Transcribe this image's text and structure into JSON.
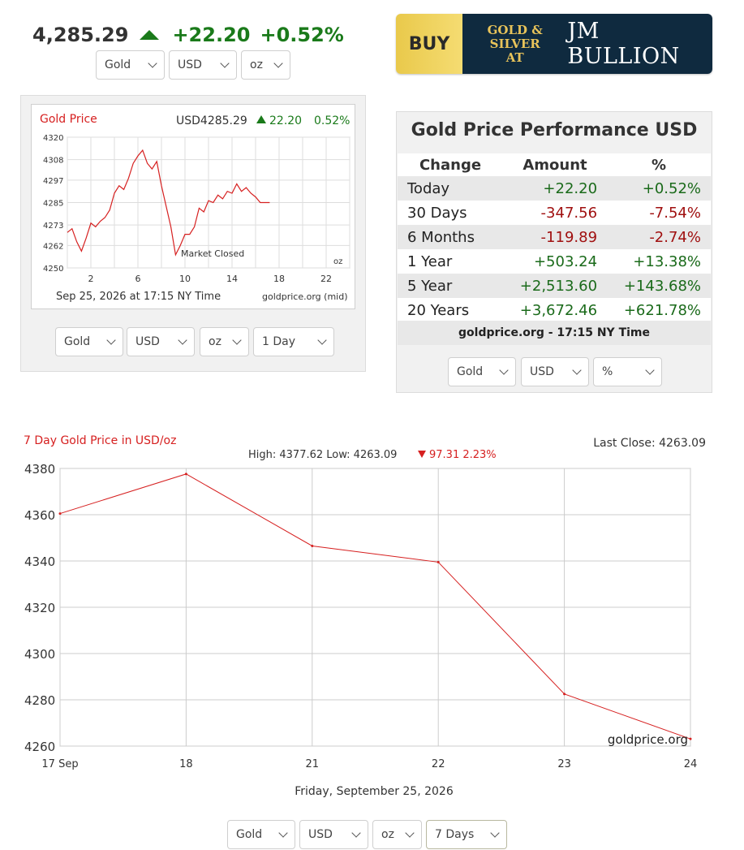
{
  "ticker": {
    "price": "4,285.29",
    "change": "+22.20",
    "percent": "+0.52%"
  },
  "top_selectors": {
    "metal": "Gold",
    "currency": "USD",
    "unit": "oz"
  },
  "banner": {
    "buy": "BUY",
    "line1": "Gold &",
    "line2": "Silver At",
    "brand": "JM Bullion"
  },
  "small_chart_selectors": {
    "metal": "Gold",
    "currency": "USD",
    "unit": "oz",
    "range": "1 Day"
  },
  "perf_selectors": {
    "metal": "Gold",
    "currency": "USD",
    "mode": "%"
  },
  "big_chart_selectors": {
    "metal": "Gold",
    "currency": "USD",
    "unit": "oz",
    "range": "7 Days"
  },
  "performance": {
    "title": "Gold Price Performance USD",
    "headers": [
      "Change",
      "Amount",
      "%"
    ],
    "rows": [
      {
        "label": "Today",
        "amount": "+22.20",
        "pct": "+0.52%",
        "dir": "pos"
      },
      {
        "label": "30 Days",
        "amount": "-347.56",
        "pct": "-7.54%",
        "dir": "neg"
      },
      {
        "label": "6 Months",
        "amount": "-119.89",
        "pct": "-2.74%",
        "dir": "neg"
      },
      {
        "label": "1 Year",
        "amount": "+503.24",
        "pct": "+13.38%",
        "dir": "pos"
      },
      {
        "label": "5 Year",
        "amount": "+2,513.60",
        "pct": "+143.68%",
        "dir": "pos"
      },
      {
        "label": "20 Years",
        "amount": "+3,672.46",
        "pct": "+621.78%",
        "dir": "pos"
      }
    ],
    "source": "goldprice.org - 17:15 NY Time"
  },
  "colors": {
    "up": "#1a7a1a",
    "down": "#a01010",
    "line": "#d62020",
    "grid": "#cccccc"
  },
  "chart_data": [
    {
      "type": "line",
      "title": "Gold Price",
      "header_price": "USD4285.29",
      "header_change": "22.20",
      "header_pct": "0.52%",
      "annotation": "Market Closed",
      "date_label": "Sep 25, 2026 at 17:15 NY Time",
      "source": "goldprice.org (mid)",
      "unit_label": "oz",
      "xlabel": "",
      "ylabel": "",
      "x_ticks": [
        2,
        6,
        10,
        14,
        18,
        22
      ],
      "y_ticks": [
        4250,
        4262,
        4273,
        4285,
        4297,
        4308,
        4320
      ],
      "xlim": [
        0,
        24
      ],
      "ylim": [
        4250,
        4320
      ],
      "grid": true,
      "x": [
        0,
        0.4,
        0.8,
        1.2,
        1.6,
        2.0,
        2.4,
        2.8,
        3.2,
        3.6,
        4.0,
        4.4,
        4.8,
        5.2,
        5.6,
        6.0,
        6.4,
        6.8,
        7.2,
        7.6,
        8.0,
        8.4,
        8.8,
        9.2,
        9.6,
        10.0,
        10.4,
        10.8,
        11.2,
        11.6,
        12.0,
        12.4,
        12.8,
        13.2,
        13.6,
        14.0,
        14.4,
        14.8,
        15.2,
        15.6,
        16.0,
        16.4,
        16.8,
        17.2
      ],
      "y": [
        4269,
        4271,
        4264,
        4259,
        4266,
        4274,
        4272,
        4275,
        4277,
        4281,
        4290,
        4294,
        4292,
        4298,
        4306,
        4310,
        4313,
        4306,
        4303,
        4307,
        4294,
        4283,
        4272,
        4257,
        4262,
        4268,
        4268,
        4272,
        4282,
        4280,
        4286,
        4285,
        4289,
        4287,
        4291,
        4290,
        4295,
        4291,
        4293,
        4290,
        4288,
        4285,
        4285,
        4285
      ]
    },
    {
      "type": "line",
      "title": "7 Day Gold Price in USD/oz",
      "stats": "High: 4377.62 Low: 4263.09",
      "change_text": "97.31 2.23%",
      "last_close": "Last Close: 4263.09",
      "footer": "Friday, September 25, 2026",
      "watermark": "goldprice.org",
      "xlabel": "",
      "ylabel": "",
      "categories": [
        "17 Sep",
        "18",
        "21",
        "22",
        "23",
        "24"
      ],
      "values": [
        4360.5,
        4377.6,
        4346.5,
        4339.5,
        4282.5,
        4263.1
      ],
      "y_ticks": [
        4260,
        4280,
        4300,
        4320,
        4340,
        4360,
        4380
      ],
      "ylim": [
        4260,
        4380
      ],
      "grid": true
    }
  ]
}
